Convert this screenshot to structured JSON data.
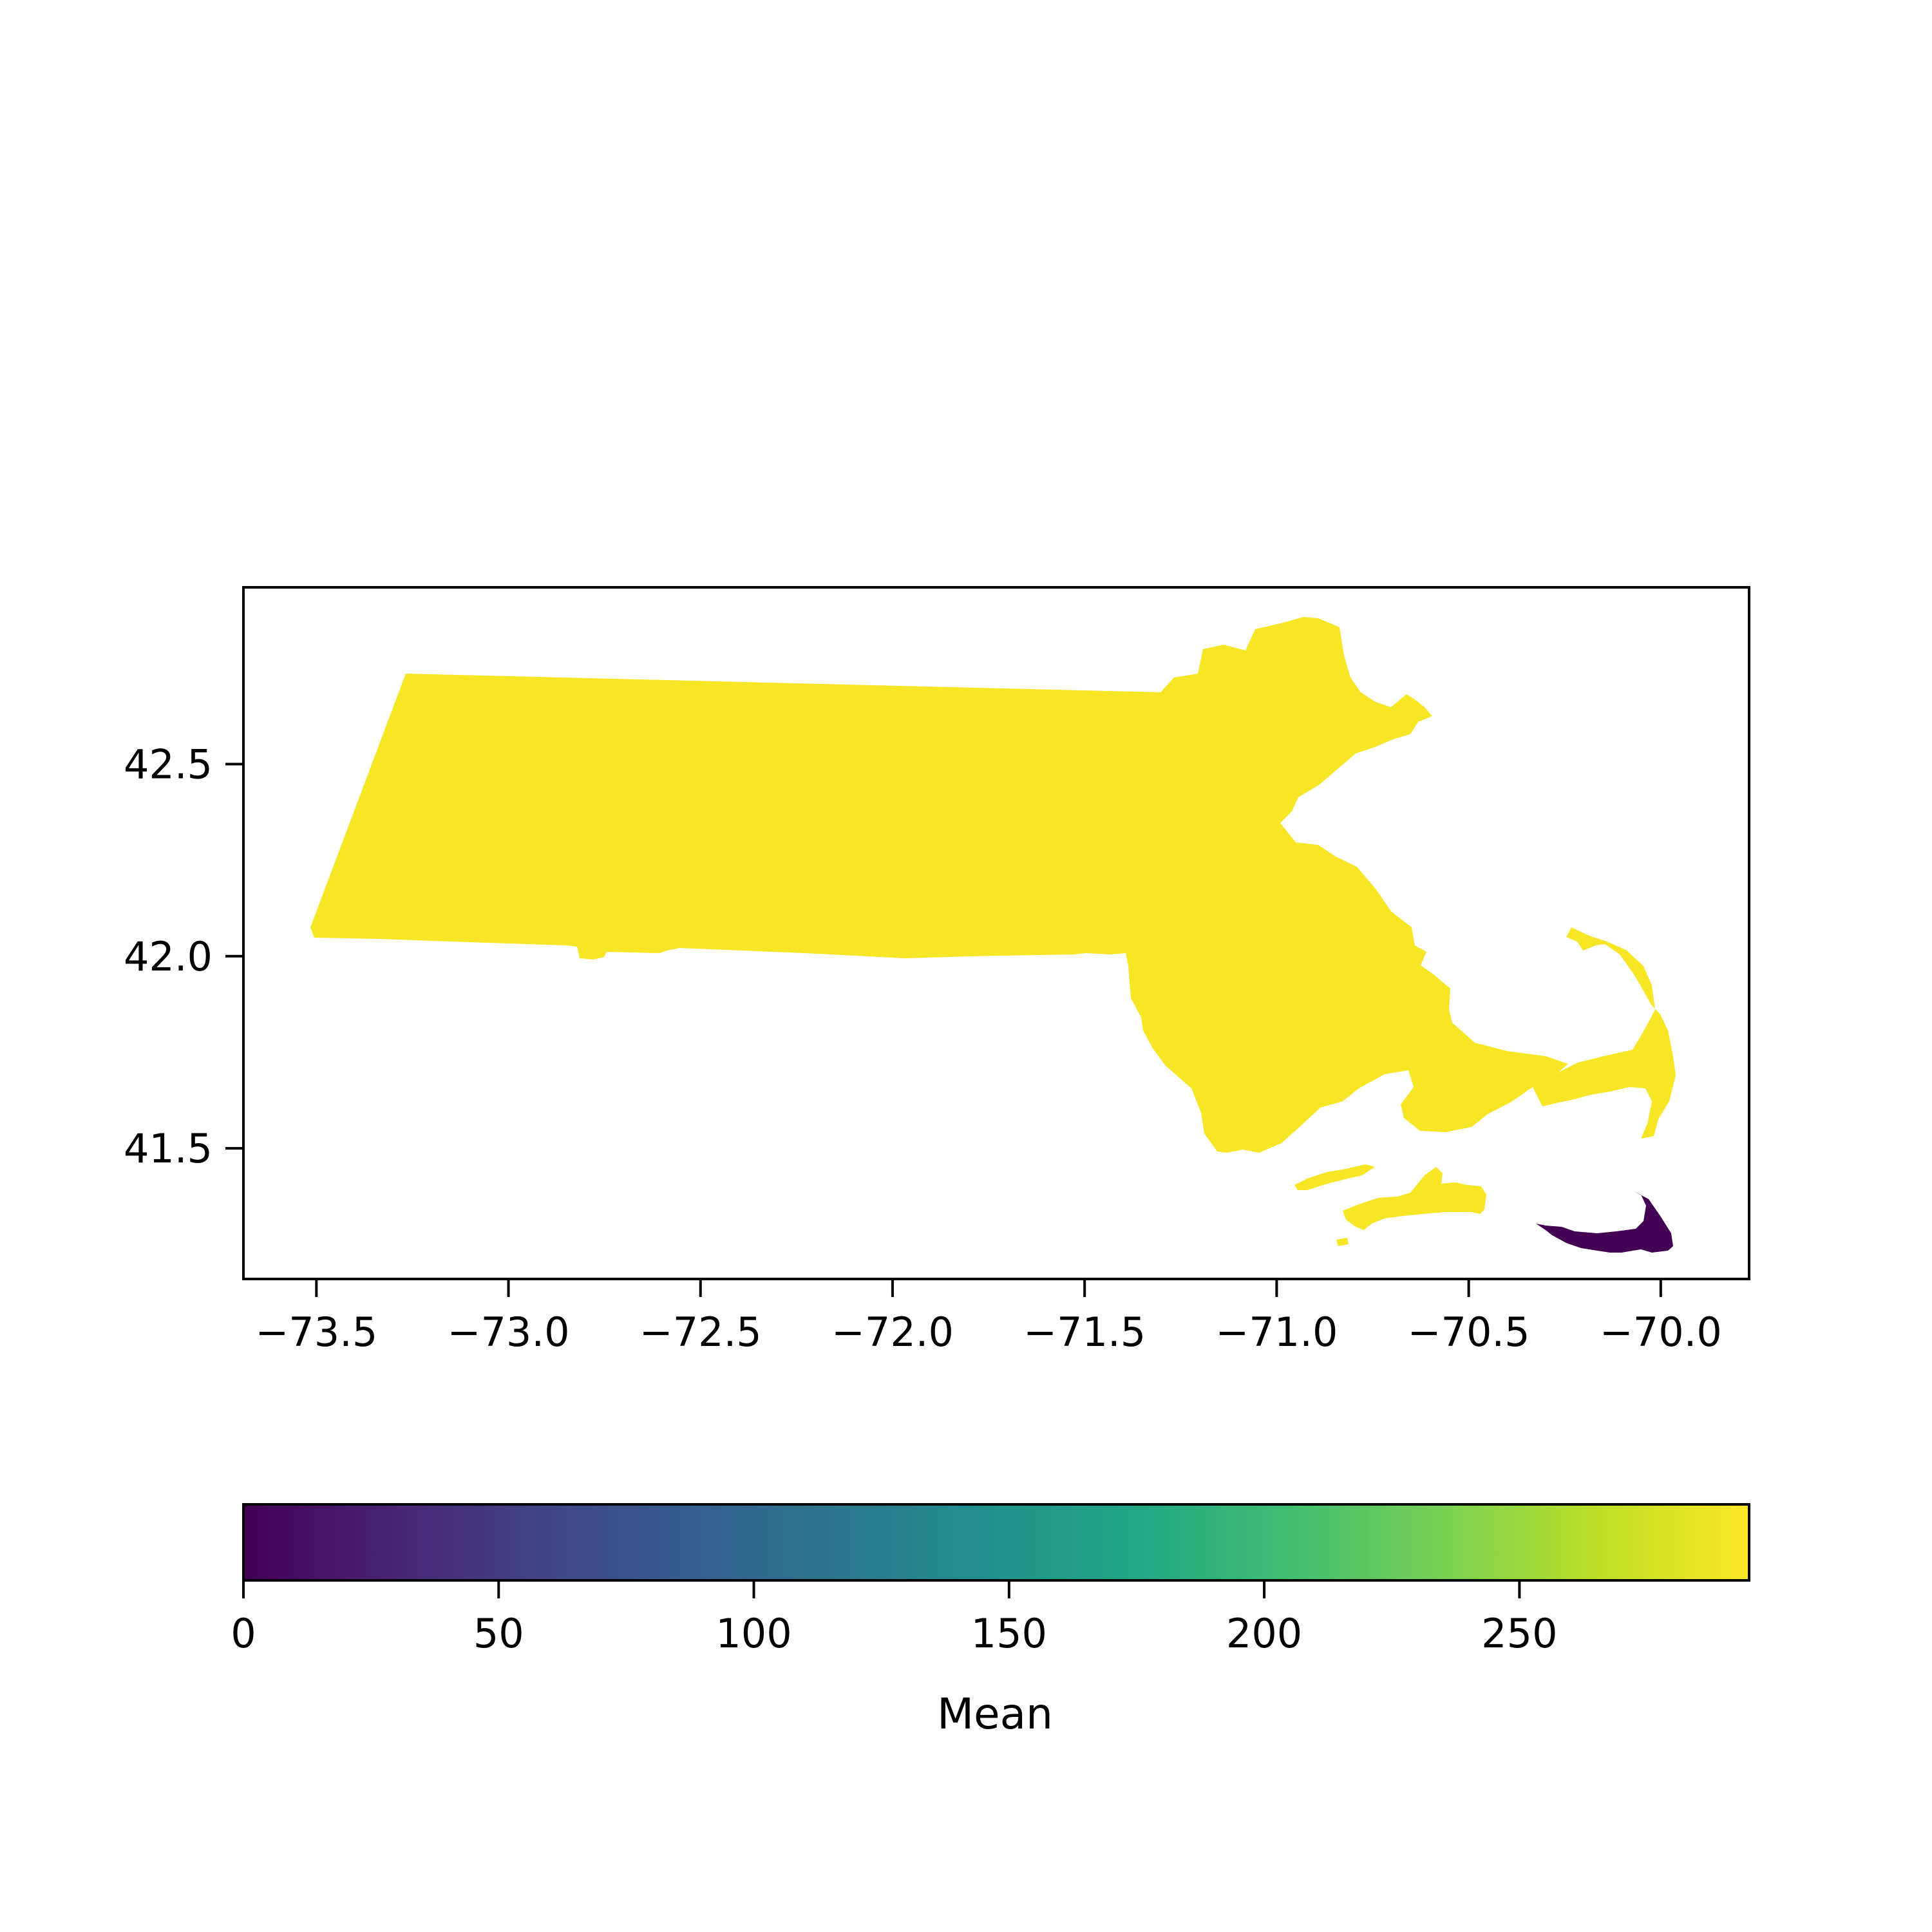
{
  "chart_data": {
    "type": "choropleth",
    "region": "Massachusetts counties",
    "title": "",
    "xlabel": "",
    "ylabel": "",
    "xlim": [
      -73.69,
      -69.77
    ],
    "ylim": [
      41.16,
      42.96
    ],
    "xticks": [
      -73.5,
      -73.0,
      -72.5,
      -72.0,
      -71.5,
      -71.0,
      -70.5,
      -70.0
    ],
    "xtick_labels": [
      "−73.5",
      "−73.0",
      "−72.5",
      "−72.0",
      "−71.5",
      "−71.0",
      "−70.5",
      "−70.0"
    ],
    "yticks": [
      41.5,
      42.0,
      42.5
    ],
    "ytick_labels": [
      "41.5",
      "42.0",
      "42.5"
    ],
    "grid": false,
    "colormap": "viridis",
    "colorbar": {
      "orientation": "horizontal",
      "placement": "bottom",
      "label": "Mean",
      "range": [
        0,
        295
      ],
      "ticks": [
        0,
        50,
        100,
        150,
        200,
        250
      ],
      "tick_labels": [
        "0",
        "50",
        "100",
        "150",
        "200",
        "250"
      ]
    },
    "regions": [
      {
        "value": 292,
        "color": "#f7e625"
      },
      {
        "value": 0,
        "color": "#440154"
      }
    ]
  }
}
